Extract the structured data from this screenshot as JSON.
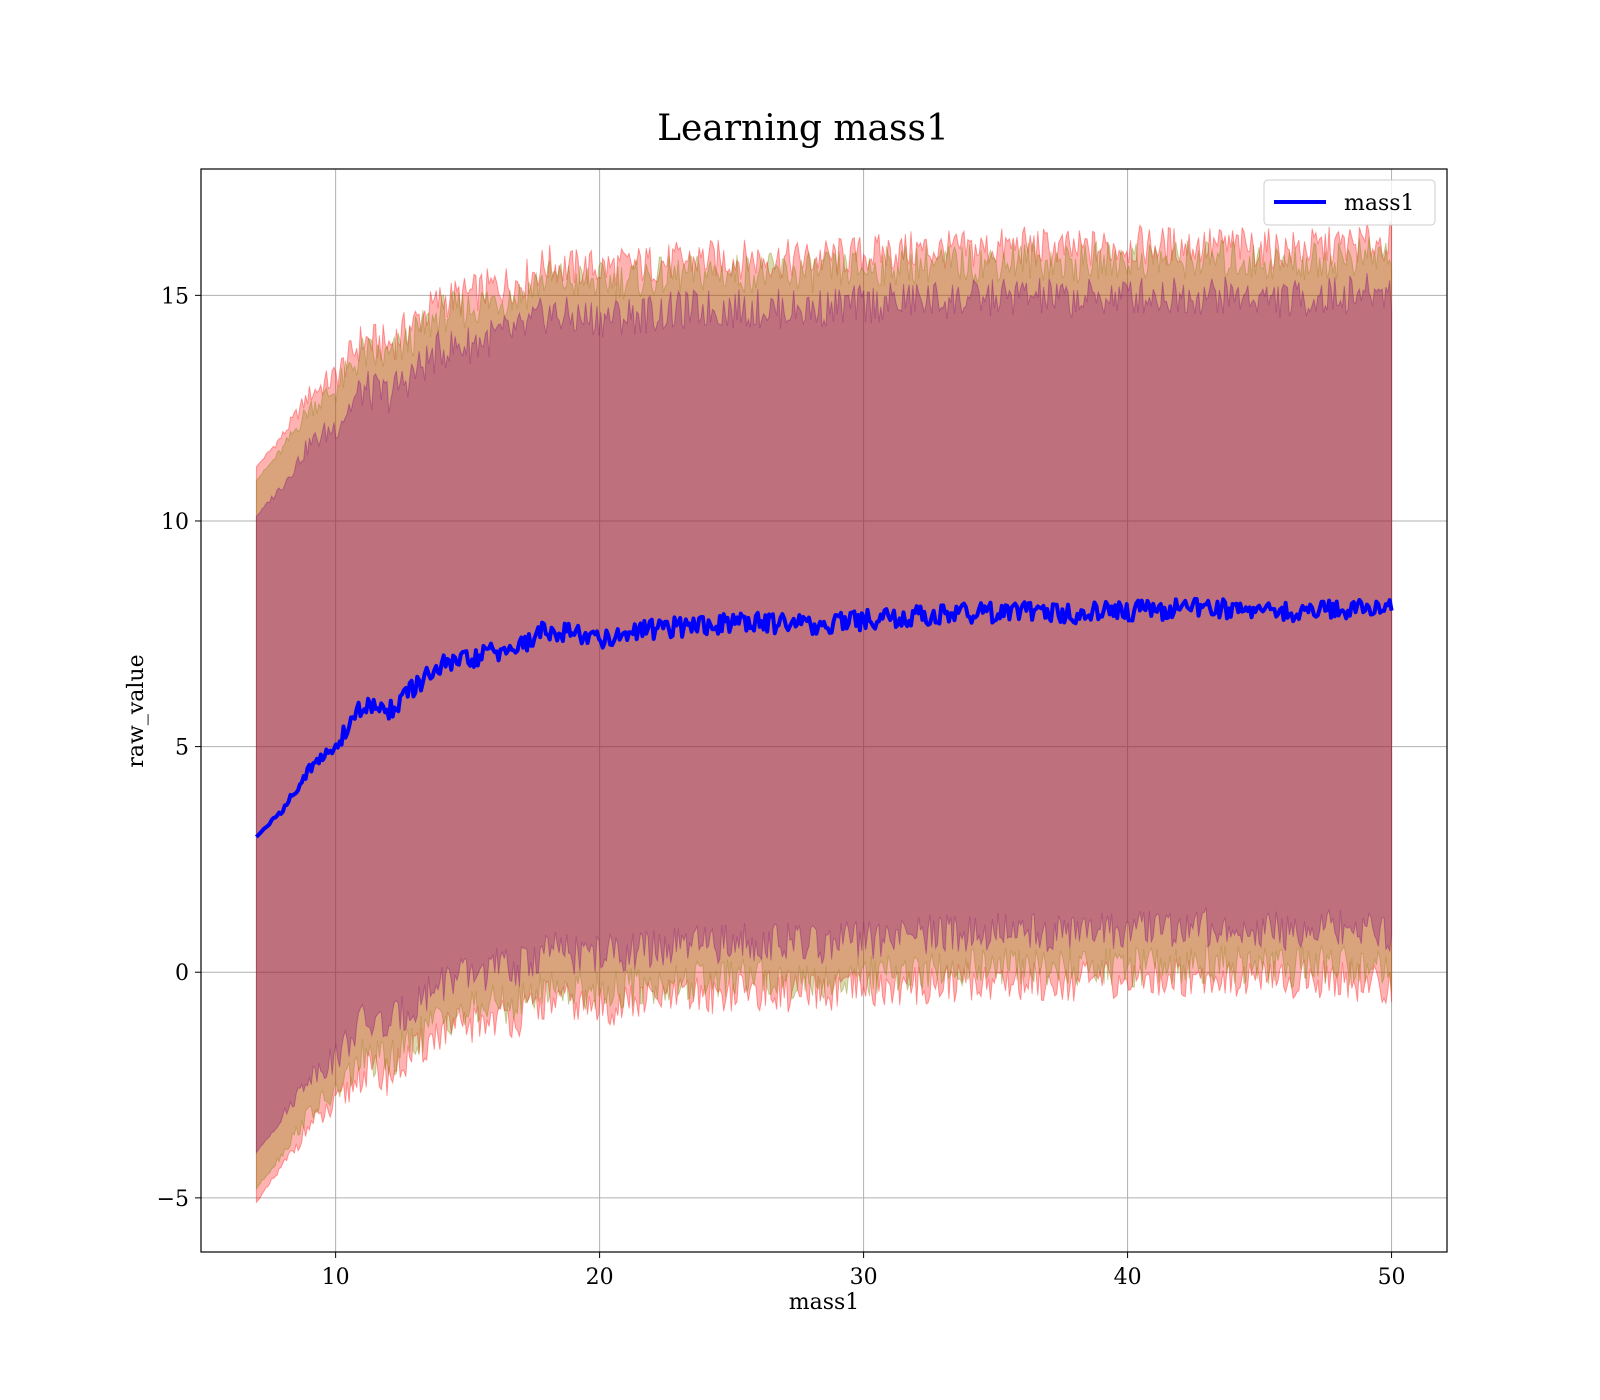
{
  "chart_data": {
    "type": "line",
    "title": "Learning mass1",
    "xlabel": "mass1",
    "ylabel": "raw_value",
    "xlim": [
      4.9,
      52.1
    ],
    "ylim": [
      -6.2,
      17.8
    ],
    "xticks": [
      10,
      20,
      30,
      40,
      50
    ],
    "yticks": [
      -5,
      0,
      5,
      10,
      15
    ],
    "ytick_labels": [
      "−5",
      "0",
      "5",
      "10",
      "15"
    ],
    "grid": true,
    "legend_position": "top-right",
    "series": [
      {
        "name": "mass1",
        "color": "#0000ff",
        "x": [
          7,
          8,
          9,
          10,
          11,
          12,
          13,
          14,
          15,
          16,
          17,
          18,
          19,
          20,
          22,
          24,
          26,
          28,
          30,
          32,
          34,
          36,
          38,
          40,
          42,
          44,
          46,
          48,
          50
        ],
        "y": [
          3.0,
          3.6,
          4.5,
          5.0,
          5.9,
          5.8,
          6.3,
          6.8,
          6.9,
          7.1,
          7.2,
          7.6,
          7.5,
          7.4,
          7.6,
          7.7,
          7.75,
          7.7,
          7.8,
          7.9,
          7.95,
          8.0,
          7.95,
          8.0,
          8.05,
          8.05,
          8.0,
          8.05,
          8.1
        ]
      }
    ],
    "bands": [
      {
        "color": "#ff0000",
        "opacity": 0.3,
        "x": [
          7,
          8,
          9,
          10,
          11,
          12,
          13,
          14,
          15,
          16,
          17,
          18,
          19,
          20,
          22,
          24,
          26,
          28,
          30,
          32,
          34,
          36,
          38,
          40,
          42,
          44,
          46,
          48,
          50
        ],
        "lower": [
          -5.1,
          -4.3,
          -3.4,
          -3.0,
          -2.2,
          -2.3,
          -1.8,
          -1.3,
          -1.2,
          -1.0,
          -1.0,
          -0.6,
          -0.7,
          -0.8,
          -0.6,
          -0.5,
          -0.4,
          -0.5,
          -0.4,
          -0.3,
          -0.2,
          -0.2,
          -0.2,
          -0.2,
          -0.1,
          -0.1,
          -0.2,
          -0.1,
          -0.4
        ],
        "upper": [
          11.2,
          11.9,
          12.8,
          13.2,
          14.0,
          13.9,
          14.4,
          14.9,
          15.0,
          15.2,
          15.3,
          15.7,
          15.6,
          15.6,
          15.7,
          15.8,
          15.8,
          15.8,
          15.9,
          16.0,
          16.0,
          16.1,
          16.0,
          16.1,
          16.1,
          16.1,
          16.0,
          16.1,
          16.2
        ]
      },
      {
        "color": "#808000",
        "opacity": 0.3,
        "x": [
          7,
          8,
          9,
          10,
          11,
          12,
          13,
          14,
          15,
          16,
          17,
          18,
          19,
          20,
          22,
          24,
          26,
          28,
          30,
          32,
          34,
          36,
          38,
          40,
          42,
          44,
          46,
          48,
          50
        ],
        "lower": [
          -4.8,
          -4.0,
          -3.1,
          -2.7,
          -1.9,
          -2.0,
          -1.5,
          -1.0,
          -0.9,
          -0.7,
          -0.7,
          -0.3,
          -0.4,
          -0.4,
          -0.3,
          -0.2,
          -0.1,
          -0.2,
          -0.1,
          0.0,
          0.1,
          0.1,
          0.1,
          0.1,
          0.2,
          0.2,
          0.1,
          0.2,
          0.0
        ],
        "upper": [
          10.9,
          11.6,
          12.5,
          12.9,
          13.7,
          13.6,
          14.1,
          14.6,
          14.7,
          14.9,
          15.0,
          15.4,
          15.3,
          15.3,
          15.4,
          15.5,
          15.5,
          15.5,
          15.6,
          15.7,
          15.7,
          15.8,
          15.7,
          15.8,
          15.8,
          15.8,
          15.7,
          15.8,
          15.9
        ]
      },
      {
        "color": "#800080",
        "opacity": 0.3,
        "x": [
          7,
          8,
          9,
          10,
          11,
          12,
          13,
          14,
          15,
          16,
          17,
          18,
          19,
          20,
          22,
          24,
          26,
          28,
          30,
          32,
          34,
          36,
          38,
          40,
          42,
          44,
          46,
          48,
          50
        ],
        "lower": [
          -4.0,
          -3.2,
          -2.3,
          -1.9,
          -1.1,
          -1.2,
          -0.7,
          -0.2,
          -0.1,
          0.1,
          0.1,
          0.5,
          0.4,
          0.4,
          0.5,
          0.6,
          0.7,
          0.6,
          0.7,
          0.8,
          0.9,
          0.9,
          0.9,
          0.9,
          1.0,
          1.0,
          0.9,
          1.0,
          0.8
        ],
        "upper": [
          10.1,
          10.8,
          11.7,
          12.1,
          12.9,
          12.8,
          13.3,
          13.8,
          13.9,
          14.1,
          14.2,
          14.6,
          14.5,
          14.5,
          14.6,
          14.7,
          14.7,
          14.7,
          14.8,
          14.9,
          14.9,
          15.0,
          14.9,
          15.0,
          15.0,
          15.0,
          14.9,
          15.0,
          15.1
        ]
      }
    ]
  }
}
